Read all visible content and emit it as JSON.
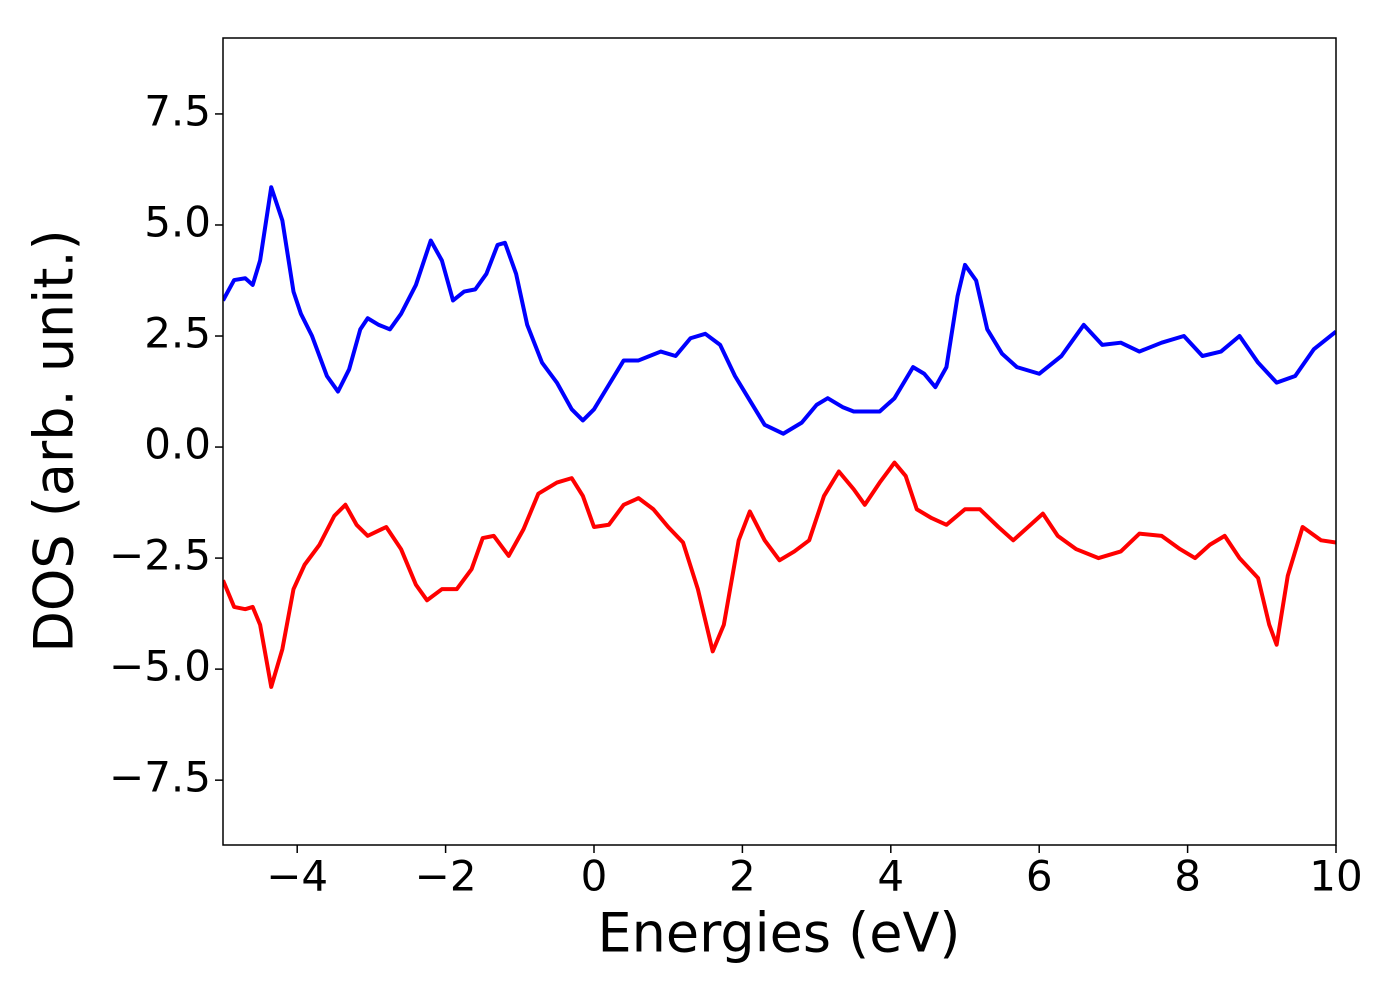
{
  "chart_data": {
    "type": "line",
    "xlabel": "Energies (eV)",
    "ylabel": "DOS (arb. unit.)",
    "xlim": [
      -5,
      10
    ],
    "ylim": [
      -8.96,
      9.21
    ],
    "xticks": [
      {
        "value": -4,
        "label": "−4"
      },
      {
        "value": -2,
        "label": "−2"
      },
      0,
      2,
      4,
      6,
      8,
      10
    ],
    "yticks": [
      {
        "value": -7.5,
        "label": "−7.5"
      },
      {
        "value": -5,
        "label": "−5.0"
      },
      {
        "value": -2.5,
        "label": "−2.5"
      },
      {
        "value": 0,
        "label": "0.0"
      },
      {
        "value": 2.5,
        "label": "2.5"
      },
      {
        "value": 5,
        "label": "5.0"
      },
      {
        "value": 7.5,
        "label": "7.5"
      }
    ],
    "series": [
      {
        "color": "#0000ff",
        "x": [
          -5,
          -4.85,
          -4.7,
          -4.6,
          -4.5,
          -4.35,
          -4.2,
          -4.05,
          -3.95,
          -3.8,
          -3.6,
          -3.45,
          -3.3,
          -3.15,
          -3.05,
          -2.9,
          -2.75,
          -2.6,
          -2.4,
          -2.2,
          -2.05,
          -1.9,
          -1.75,
          -1.6,
          -1.45,
          -1.3,
          -1.2,
          -1.05,
          -0.9,
          -0.7,
          -0.5,
          -0.3,
          -0.15,
          0,
          0.2,
          0.4,
          0.6,
          0.75,
          0.9,
          1.1,
          1.3,
          1.5,
          1.7,
          1.9,
          2.1,
          2.3,
          2.55,
          2.8,
          3.0,
          3.15,
          3.35,
          3.5,
          3.7,
          3.85,
          4.05,
          4.3,
          4.45,
          4.6,
          4.75,
          4.9,
          5.0,
          5.15,
          5.3,
          5.5,
          5.7,
          6.0,
          6.3,
          6.6,
          6.85,
          7.1,
          7.35,
          7.65,
          7.95,
          8.2,
          8.45,
          8.7,
          8.95,
          9.2,
          9.45,
          9.7,
          10
        ],
        "values": [
          3.3,
          3.76,
          3.8,
          3.65,
          4.2,
          5.85,
          5.1,
          3.5,
          3.0,
          2.5,
          1.6,
          1.25,
          1.75,
          2.65,
          2.9,
          2.75,
          2.65,
          3.0,
          3.65,
          4.65,
          4.2,
          3.3,
          3.5,
          3.55,
          3.9,
          4.55,
          4.6,
          3.9,
          2.75,
          1.9,
          1.45,
          0.85,
          0.6,
          0.85,
          1.4,
          1.95,
          1.95,
          2.05,
          2.15,
          2.05,
          2.45,
          2.55,
          2.3,
          1.6,
          1.05,
          0.5,
          0.3,
          0.55,
          0.95,
          1.1,
          0.9,
          0.8,
          0.8,
          0.8,
          1.1,
          1.8,
          1.65,
          1.35,
          1.8,
          3.4,
          4.1,
          3.75,
          2.65,
          2.1,
          1.8,
          1.65,
          2.05,
          2.75,
          2.3,
          2.35,
          2.15,
          2.35,
          2.5,
          2.05,
          2.15,
          2.5,
          1.9,
          1.45,
          1.6,
          2.2,
          2.6
        ]
      },
      {
        "color": "#ff0000",
        "x": [
          -5,
          -4.85,
          -4.7,
          -4.6,
          -4.5,
          -4.35,
          -4.2,
          -4.05,
          -3.9,
          -3.7,
          -3.5,
          -3.35,
          -3.2,
          -3.05,
          -2.8,
          -2.6,
          -2.4,
          -2.25,
          -2.05,
          -1.85,
          -1.65,
          -1.5,
          -1.35,
          -1.15,
          -0.95,
          -0.75,
          -0.5,
          -0.3,
          -0.15,
          0,
          0.2,
          0.4,
          0.6,
          0.8,
          1.0,
          1.2,
          1.4,
          1.6,
          1.75,
          1.95,
          2.1,
          2.3,
          2.5,
          2.7,
          2.9,
          3.1,
          3.3,
          3.5,
          3.65,
          3.85,
          4.05,
          4.2,
          4.35,
          4.55,
          4.75,
          5.0,
          5.2,
          5.45,
          5.65,
          5.85,
          6.05,
          6.25,
          6.5,
          6.8,
          7.1,
          7.35,
          7.65,
          7.9,
          8.1,
          8.3,
          8.5,
          8.7,
          8.95,
          9.1,
          9.2,
          9.35,
          9.55,
          9.8,
          10
        ],
        "values": [
          -3.0,
          -3.6,
          -3.65,
          -3.6,
          -4.0,
          -5.4,
          -4.55,
          -3.2,
          -2.65,
          -2.2,
          -1.55,
          -1.3,
          -1.75,
          -2.0,
          -1.8,
          -2.3,
          -3.1,
          -3.45,
          -3.2,
          -3.2,
          -2.75,
          -2.05,
          -2.0,
          -2.45,
          -1.85,
          -1.05,
          -0.8,
          -0.7,
          -1.1,
          -1.8,
          -1.75,
          -1.3,
          -1.15,
          -1.4,
          -1.8,
          -2.15,
          -3.2,
          -4.6,
          -4.0,
          -2.1,
          -1.45,
          -2.1,
          -2.55,
          -2.35,
          -2.1,
          -1.1,
          -0.55,
          -0.95,
          -1.3,
          -0.8,
          -0.35,
          -0.65,
          -1.4,
          -1.6,
          -1.75,
          -1.4,
          -1.4,
          -1.8,
          -2.1,
          -1.8,
          -1.5,
          -2.0,
          -2.3,
          -2.5,
          -2.35,
          -1.95,
          -2.0,
          -2.3,
          -2.5,
          -2.2,
          -2.0,
          -2.5,
          -2.95,
          -4.0,
          -4.45,
          -2.9,
          -1.8,
          -2.1,
          -2.15
        ]
      }
    ]
  }
}
